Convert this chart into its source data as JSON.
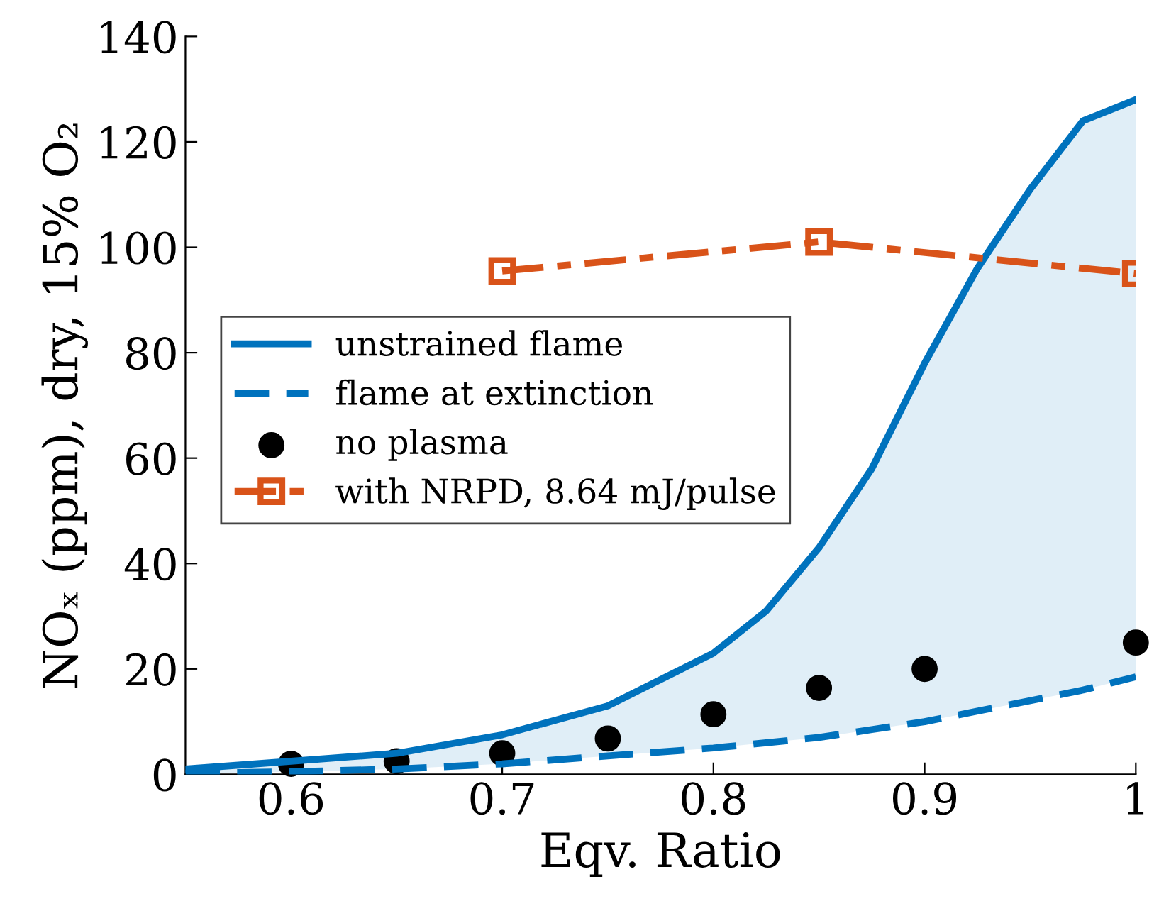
{
  "chart_data": {
    "type": "line",
    "xlabel": "Eqv. Ratio",
    "ylabel": "NOₓ (ppm), dry, 15% O₂",
    "xlim": [
      0.55,
      1.0
    ],
    "xticks": [
      0.6,
      0.7,
      0.8,
      0.9,
      1
    ],
    "ylim": [
      0,
      140
    ],
    "yticks": [
      0,
      20,
      40,
      60,
      80,
      100,
      120,
      140
    ],
    "grid": false,
    "legend": "left",
    "series": [
      {
        "name": "unstrained flame",
        "color": "#0072bd",
        "line_style": "solid",
        "marker": "none",
        "x": [
          0.55,
          0.6,
          0.65,
          0.7,
          0.75,
          0.8,
          0.825,
          0.85,
          0.875,
          0.9,
          0.925,
          0.95,
          0.975,
          1.0
        ],
        "values": [
          1,
          2.5,
          4,
          7.5,
          13,
          23,
          31,
          43,
          58,
          78,
          96,
          111,
          124,
          128
        ],
        "lower": [
          0.2,
          0.5,
          1,
          2,
          3.5,
          5,
          6,
          7,
          8.5,
          10,
          12,
          14,
          16,
          18.5
        ],
        "upper": [
          1,
          2.5,
          4,
          7.5,
          13,
          23,
          31,
          43,
          58,
          78,
          96,
          111,
          124,
          128
        ]
      },
      {
        "name": "flame at extinction",
        "color": "#0072bd",
        "line_style": "dashed",
        "marker": "none",
        "x": [
          0.55,
          0.6,
          0.65,
          0.7,
          0.75,
          0.8,
          0.825,
          0.85,
          0.875,
          0.9,
          0.925,
          0.95,
          0.975,
          1.0
        ],
        "values": [
          0.2,
          0.5,
          1,
          2,
          3.5,
          5,
          6,
          7,
          8.5,
          10,
          12,
          14,
          16,
          18.5
        ]
      },
      {
        "name": "no plasma",
        "type": "scatter",
        "color": "#000000",
        "marker": "circle",
        "x": [
          0.6,
          0.65,
          0.7,
          0.75,
          0.8,
          0.85,
          0.9,
          1.0
        ],
        "values": [
          2,
          2.5,
          4,
          6.8,
          11.4,
          16.4,
          20,
          25
        ]
      },
      {
        "name": "with NRPD, 8.64 mJ/pulse",
        "color": "#d95319",
        "line_style": "dashdot",
        "marker": "square",
        "x": [
          0.7,
          0.85,
          1.0
        ],
        "values": [
          95.5,
          101,
          95
        ]
      }
    ]
  }
}
